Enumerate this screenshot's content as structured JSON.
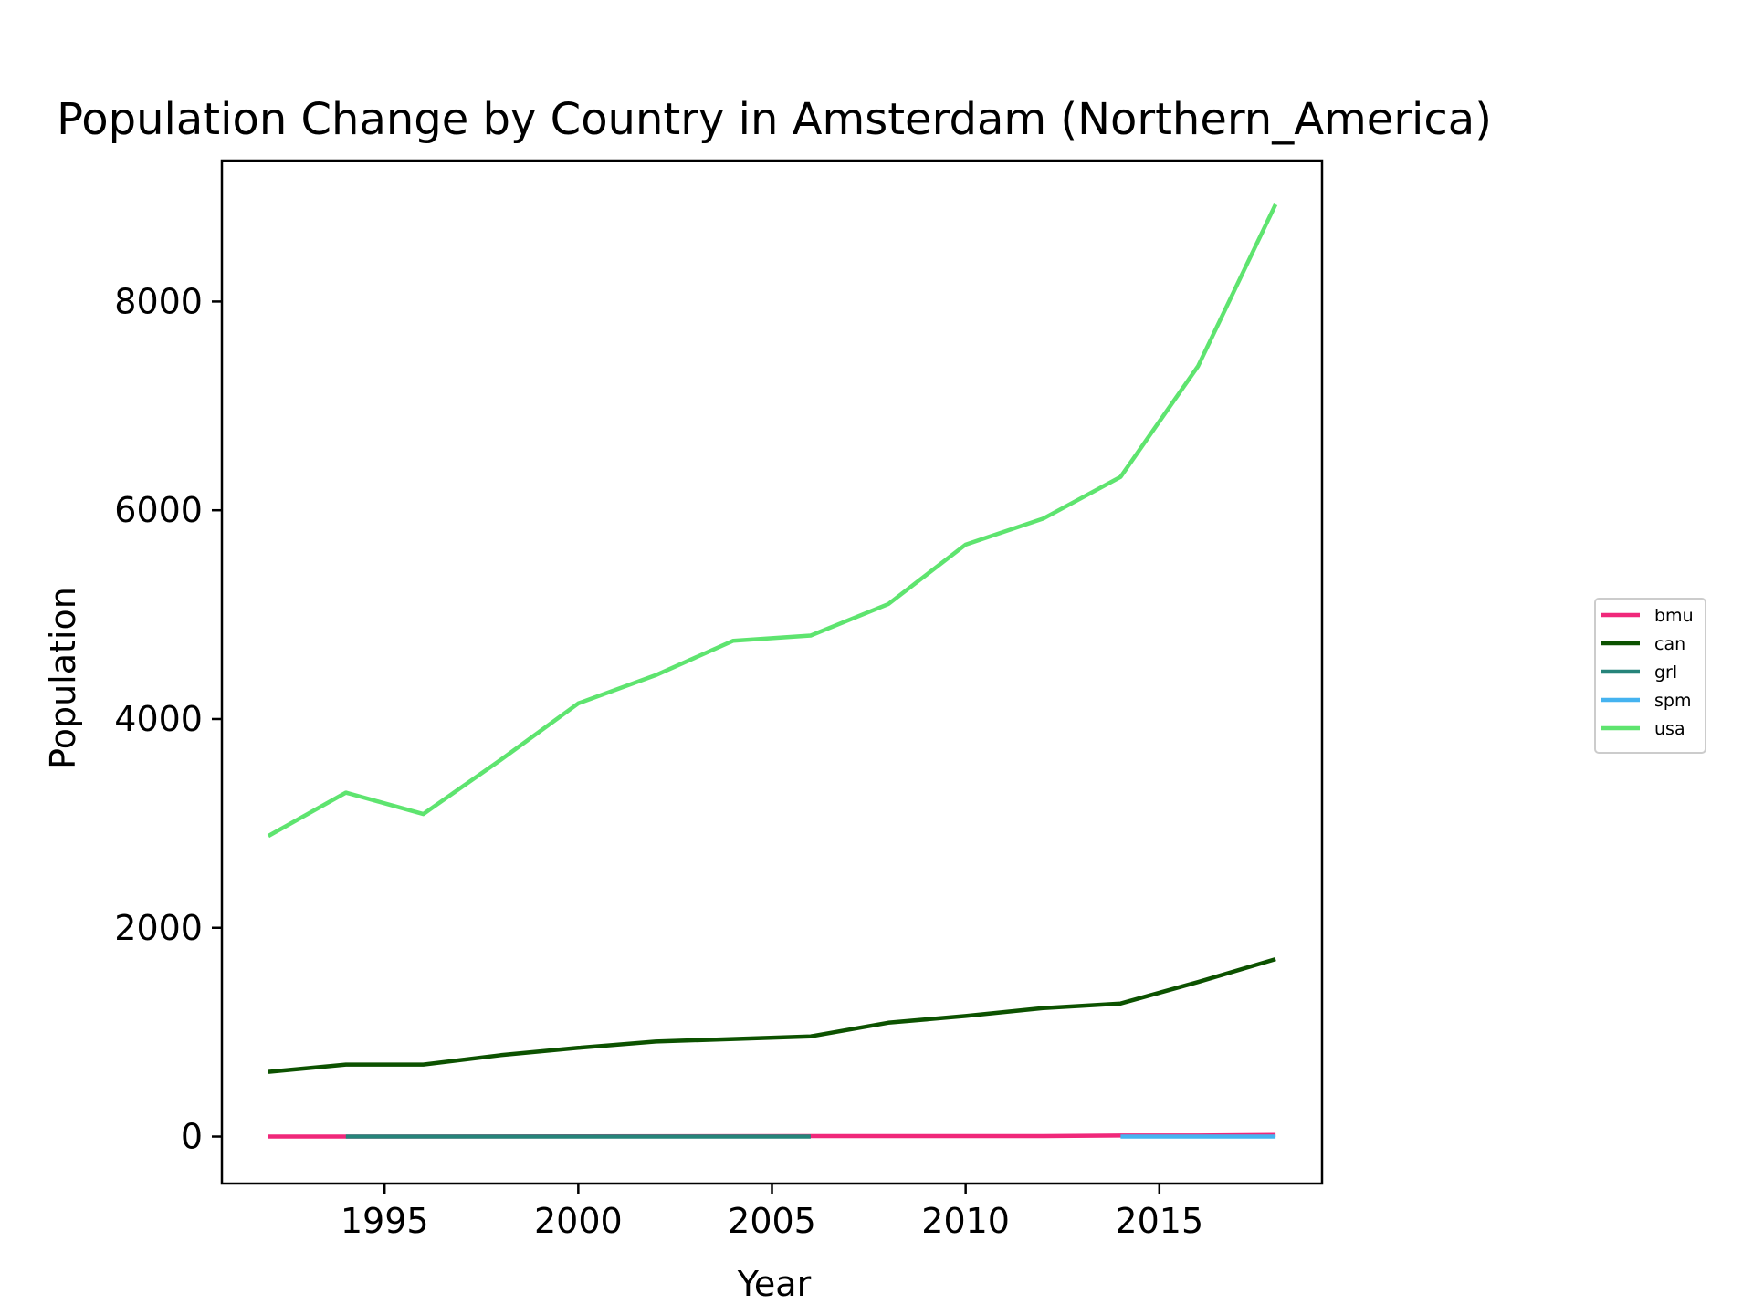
{
  "chart_data": {
    "type": "line",
    "title": "Population Change by Country in Amsterdam (Northern_America)",
    "xlabel": "Year",
    "ylabel": "Population",
    "xlim": [
      1990.8,
      2019.2
    ],
    "ylim": [
      -450,
      9350
    ],
    "xticks": [
      1995,
      2000,
      2005,
      2010,
      2015
    ],
    "yticks": [
      0,
      2000,
      4000,
      6000,
      8000
    ],
    "grid": false,
    "legend_position": "right",
    "series": [
      {
        "name": "bmu",
        "color": "#f0287a",
        "x": [
          1992,
          1994,
          2006,
          2008,
          2010,
          2012,
          2014,
          2016,
          2018
        ],
        "y": [
          0,
          0,
          5,
          5,
          5,
          5,
          10,
          10,
          15
        ]
      },
      {
        "name": "can",
        "color": "#0c5200",
        "x": [
          1992,
          1994,
          1996,
          1998,
          2000,
          2002,
          2004,
          2006,
          2008,
          2010,
          2012,
          2014,
          2016,
          2018
        ],
        "y": [
          620,
          690,
          690,
          780,
          850,
          910,
          935,
          960,
          1090,
          1155,
          1230,
          1275,
          1480,
          1700
        ]
      },
      {
        "name": "grl",
        "color": "#26847a",
        "x": [
          1994,
          1996,
          1998,
          2000,
          2002,
          2004,
          2006
        ],
        "y": [
          0,
          0,
          0,
          0,
          0,
          0,
          0
        ]
      },
      {
        "name": "spm",
        "color": "#45b3f0",
        "x": [
          2014,
          2016,
          2018
        ],
        "y": [
          0,
          0,
          0
        ]
      },
      {
        "name": "usa",
        "color": "#5ee46f",
        "x": [
          1992,
          1994,
          1996,
          1998,
          2000,
          2002,
          2004,
          2006,
          2008,
          2010,
          2012,
          2014,
          2016,
          2018
        ],
        "y": [
          2880,
          3295,
          3090,
          3610,
          4150,
          4420,
          4750,
          4800,
          5100,
          5670,
          5920,
          6320,
          7380,
          8930
        ]
      }
    ]
  }
}
